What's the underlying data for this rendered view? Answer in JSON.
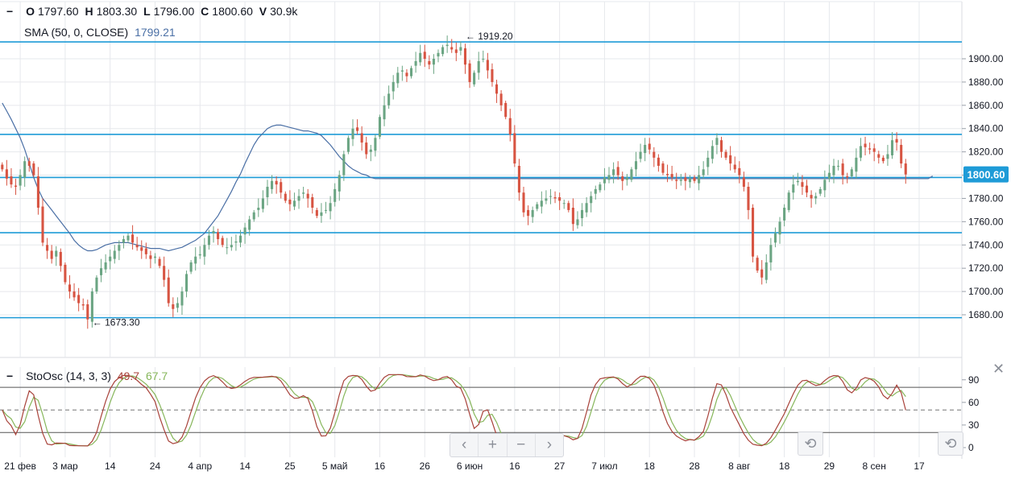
{
  "legend": {
    "ohlc": [
      {
        "key": "O",
        "value": "1797.60"
      },
      {
        "key": "H",
        "value": "1803.30"
      },
      {
        "key": "L",
        "value": "1796.00"
      },
      {
        "key": "C",
        "value": "1800.60"
      },
      {
        "key": "V",
        "value": "30.9k"
      }
    ],
    "sma_label": "SMA (50, 0, CLOSE)",
    "sma_value": "1799.21",
    "stoch_label": "StoOsc (14, 3, 3)",
    "stoch_k": "49.7",
    "stoch_d": "67.7"
  },
  "nav": {
    "left": "‹",
    "plus": "+",
    "minus": "−",
    "right": "›",
    "reset": "⟲"
  },
  "colors": {
    "up": "#6ba583",
    "down": "#d75442",
    "sma": "#4a6fa5",
    "hline": "#1e9bd7",
    "stoch_k": "#a8423a",
    "stoch_d": "#86b65a",
    "grid": "#e6e8ec",
    "last_price_bg": "#1e9bd7"
  },
  "chart_data": {
    "type": "candlestick",
    "price_axis": {
      "min": 1660,
      "max": 1920,
      "ticks": [
        1680,
        1700,
        1720,
        1740,
        1760,
        1780,
        1800,
        1820,
        1840,
        1860,
        1880,
        1900
      ],
      "labels": [
        "1680.00",
        "1700.00",
        "1720.00",
        "1740.00",
        "1760.00",
        "1780.00",
        "1800.00",
        "1820.00",
        "1840.00",
        "1860.00",
        "1880.00",
        "1900.00"
      ]
    },
    "last_price": {
      "value": 1800.6,
      "label": "1800.60"
    },
    "horizontal_lines": [
      1914.5,
      1835.0,
      1798.0,
      1750.5,
      1677.5
    ],
    "annotations": [
      {
        "text": "1919.20",
        "index": 102,
        "value": 1919.2
      },
      {
        "text": "1673.30",
        "index": 19,
        "value": 1673.3
      }
    ],
    "x_axis": {
      "total_slots": 214,
      "ticks": [
        {
          "label": "21 фев",
          "index": 4
        },
        {
          "label": "3 мар",
          "index": 14
        },
        {
          "label": "14",
          "index": 24
        },
        {
          "label": "24",
          "index": 34
        },
        {
          "label": "4 апр",
          "index": 44
        },
        {
          "label": "14",
          "index": 54
        },
        {
          "label": "25",
          "index": 64
        },
        {
          "label": "5 май",
          "index": 74
        },
        {
          "label": "16",
          "index": 84
        },
        {
          "label": "26",
          "index": 94
        },
        {
          "label": "6 июн",
          "index": 104
        },
        {
          "label": "16",
          "index": 114
        },
        {
          "label": "27",
          "index": 124
        },
        {
          "label": "7 июл",
          "index": 134
        },
        {
          "label": "18",
          "index": 144
        },
        {
          "label": "28",
          "index": 154
        },
        {
          "label": "8 авг",
          "index": 164
        },
        {
          "label": "18",
          "index": 174
        },
        {
          "label": "29",
          "index": 184
        },
        {
          "label": "8 сен",
          "index": 194
        },
        {
          "label": "17",
          "index": 204
        }
      ]
    },
    "candles_close": [
      1805,
      1797,
      1792,
      1790,
      1800,
      1812,
      1808,
      1800,
      1772,
      1742,
      1735,
      1728,
      1735,
      1722,
      1708,
      1700,
      1695,
      1690,
      1688,
      1676,
      1700,
      1712,
      1720,
      1725,
      1730,
      1735,
      1740,
      1745,
      1748,
      1742,
      1738,
      1735,
      1732,
      1728,
      1730,
      1722,
      1710,
      1690,
      1685,
      1690,
      1700,
      1715,
      1725,
      1730,
      1732,
      1740,
      1748,
      1752,
      1745,
      1740,
      1738,
      1740,
      1743,
      1748,
      1755,
      1762,
      1768,
      1772,
      1780,
      1790,
      1795,
      1792,
      1785,
      1778,
      1775,
      1778,
      1782,
      1785,
      1780,
      1772,
      1765,
      1768,
      1770,
      1776,
      1788,
      1800,
      1818,
      1832,
      1840,
      1838,
      1828,
      1818,
      1822,
      1832,
      1850,
      1860,
      1870,
      1880,
      1888,
      1890,
      1885,
      1892,
      1898,
      1905,
      1900,
      1895,
      1900,
      1905,
      1910,
      1912,
      1908,
      1905,
      1910,
      1895,
      1880,
      1888,
      1898,
      1900,
      1890,
      1880,
      1870,
      1860,
      1850,
      1835,
      1810,
      1785,
      1768,
      1765,
      1770,
      1775,
      1778,
      1780,
      1782,
      1780,
      1778,
      1776,
      1770,
      1758,
      1762,
      1770,
      1776,
      1782,
      1788,
      1792,
      1798,
      1800,
      1805,
      1800,
      1795,
      1798,
      1805,
      1812,
      1820,
      1826,
      1822,
      1815,
      1808,
      1802,
      1800,
      1798,
      1795,
      1796,
      1795,
      1797,
      1795,
      1800,
      1805,
      1815,
      1825,
      1832,
      1820,
      1815,
      1810,
      1805,
      1800,
      1790,
      1770,
      1730,
      1718,
      1712,
      1725,
      1740,
      1750,
      1760,
      1772,
      1785,
      1792,
      1795,
      1790,
      1785,
      1780,
      1782,
      1788,
      1796,
      1802,
      1808,
      1808,
      1800,
      1798,
      1805,
      1815,
      1825,
      1824,
      1822,
      1820,
      1815,
      1812,
      1818,
      1830,
      1828,
      1810,
      1800.6
    ],
    "sma": [
      1862,
      1855,
      1848,
      1840,
      1832,
      1822,
      1810,
      1798,
      1788,
      1780,
      1775,
      1770,
      1765,
      1760,
      1755,
      1750,
      1744,
      1740,
      1737,
      1735,
      1735,
      1736,
      1738,
      1740,
      1741,
      1742,
      1742,
      1742,
      1742,
      1741,
      1740,
      1739,
      1738,
      1737,
      1737,
      1737,
      1736,
      1735,
      1736,
      1737,
      1738,
      1740,
      1742,
      1744,
      1747,
      1750,
      1755,
      1760,
      1765,
      1772,
      1779,
      1786,
      1794,
      1801,
      1810,
      1818,
      1826,
      1832,
      1836,
      1840,
      1842,
      1843,
      1843,
      1842,
      1841,
      1840,
      1839,
      1838,
      1838,
      1837,
      1836,
      1834,
      1830,
      1826,
      1821,
      1816,
      1812,
      1808,
      1805,
      1803,
      1801,
      1800,
      1798,
      1797,
      1797,
      1797,
      1797,
      1797,
      1797,
      1797,
      1797,
      1797,
      1797,
      1797,
      1797,
      1797,
      1797,
      1797,
      1797,
      1797,
      1797,
      1797,
      1797,
      1797,
      1797,
      1797,
      1797,
      1797,
      1797,
      1797,
      1797,
      1797,
      1797,
      1797,
      1797,
      1797,
      1797,
      1797,
      1797,
      1797,
      1797,
      1797,
      1797,
      1797,
      1797,
      1797,
      1797,
      1797,
      1797,
      1797,
      1797,
      1797,
      1797,
      1797,
      1797,
      1797,
      1797,
      1797,
      1797,
      1797,
      1797,
      1797,
      1797,
      1797,
      1797,
      1797,
      1797,
      1797,
      1797,
      1797,
      1797,
      1797,
      1797,
      1797,
      1797,
      1797,
      1797,
      1797,
      1797,
      1797,
      1797,
      1797,
      1797,
      1797,
      1797,
      1797,
      1797,
      1797,
      1797,
      1797,
      1797,
      1797,
      1797,
      1797,
      1797,
      1797,
      1797,
      1797,
      1797,
      1797,
      1797,
      1797,
      1797,
      1797,
      1797,
      1797,
      1797,
      1797,
      1797,
      1797,
      1797,
      1797,
      1797,
      1797,
      1797,
      1797,
      1797,
      1797,
      1797,
      1797,
      1797,
      1797,
      1797,
      1797,
      1797,
      1797,
      1797,
      1799.21
    ],
    "stochastic": {
      "axis": {
        "min": 0,
        "max": 100,
        "ticks": [
          0,
          30,
          60,
          90
        ],
        "overbought": 80,
        "mid": 50,
        "oversold": 20
      },
      "k_final": 49.7,
      "d_final": 67.7
    }
  }
}
